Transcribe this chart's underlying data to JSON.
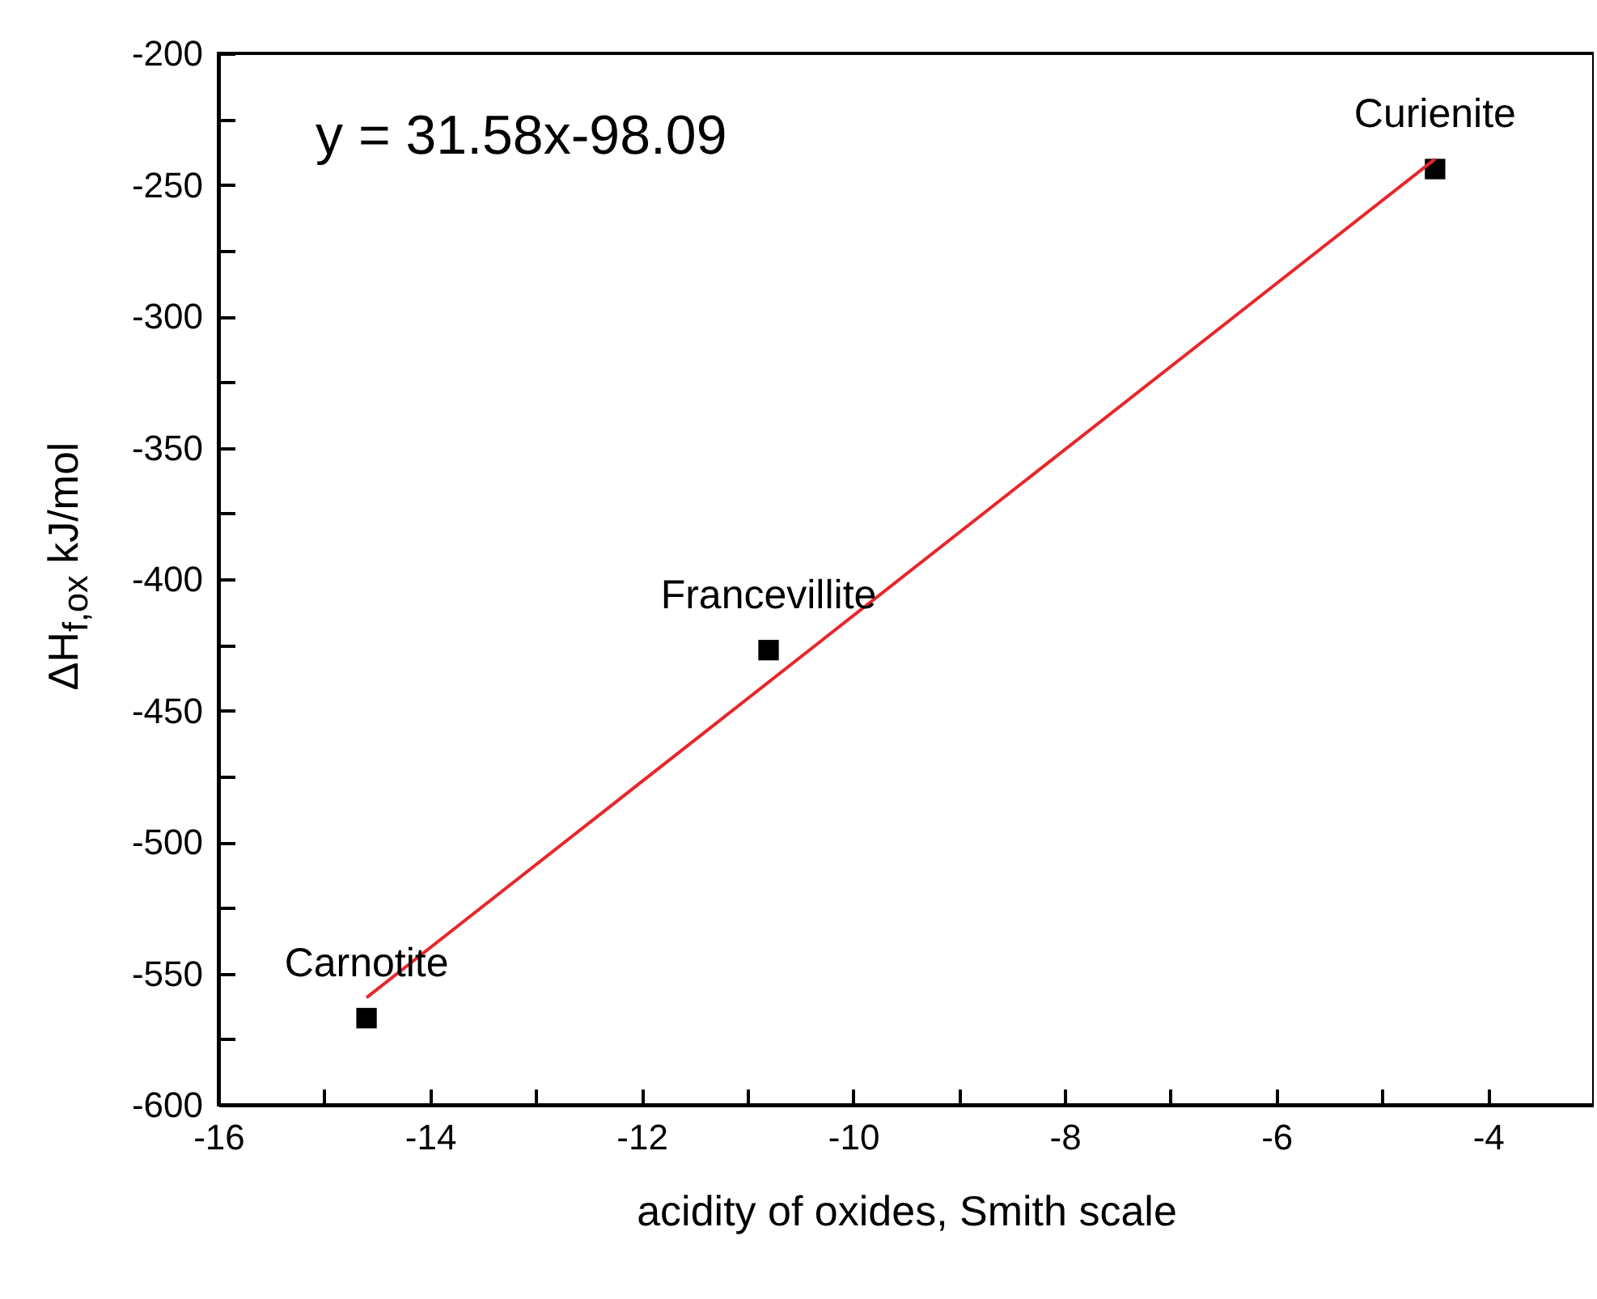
{
  "chart_data": {
    "type": "scatter",
    "xlabel": "acidity of oxides, Smith scale",
    "ylabel": "ΔH$_{f,ox}$ kJ/mol",
    "grid": false,
    "xlim": [
      -16,
      -3
    ],
    "xticks": [
      -16,
      {
        "value": -15,
        "label": null
      },
      -14,
      {
        "value": -13,
        "label": null
      },
      -12,
      {
        "value": -11,
        "label": null
      },
      -10,
      {
        "value": -9,
        "label": null
      },
      -8,
      {
        "value": -7,
        "label": null
      },
      -6,
      {
        "value": -5,
        "label": null
      },
      -4
    ],
    "ylim": [
      -600,
      -200
    ],
    "yticks": [
      -600,
      {
        "value": -575,
        "label": null
      },
      -550,
      {
        "value": -525,
        "label": null
      },
      -500,
      {
        "value": -475,
        "label": null
      },
      -450,
      {
        "value": -425,
        "label": null
      },
      -400,
      {
        "value": -375,
        "label": null
      },
      -350,
      {
        "value": -325,
        "label": null
      },
      -300,
      {
        "value": -275,
        "label": null
      },
      -250,
      {
        "value": -225,
        "label": null
      },
      -200
    ],
    "series": [
      {
        "marker": "square",
        "color": "#000000",
        "x": [
          -14.6,
          -10.8,
          -4.5
        ],
        "values": [
          -567,
          -427,
          -244
        ]
      },
      {
        "type": "line",
        "color": "#e8262a",
        "x": [
          -14.6,
          -4.5
        ],
        "values": [
          -559.2,
          -240.2
        ]
      }
    ],
    "annotations": [
      "y = 31.58x-98.09",
      {
        "text": "Carnotite",
        "x": -14.6,
        "y": -567
      },
      {
        "text": "Francevillite",
        "x": -10.8,
        "y": -427
      },
      {
        "text": "Curienite",
        "x": -4.5,
        "y": -244
      }
    ]
  }
}
